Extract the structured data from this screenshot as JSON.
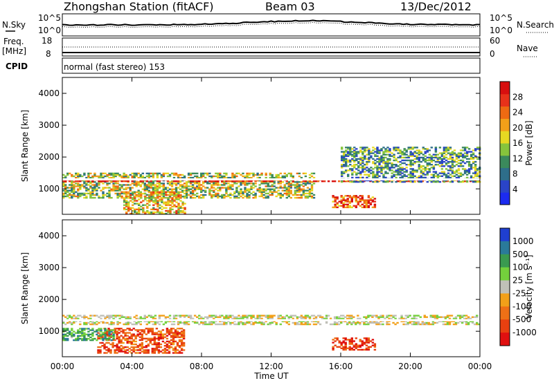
{
  "header": {
    "station": "Zhongshan Station (fitACF)",
    "beam": "Beam 03",
    "date": "13/Dec/2012"
  },
  "strips": {
    "sky_label": "N.Sky",
    "search_label": "N.Search",
    "sky_ticks": [
      "10^5",
      "10^0"
    ],
    "search_ticks": [
      "10^5",
      "10^0"
    ],
    "freq_label_1": "Freq.",
    "freq_label_2": "[MHz]",
    "freq_ticks": [
      "18",
      "8"
    ],
    "nave_label": "Nave",
    "nave_ticks": [
      "60",
      "0"
    ],
    "cpid_label": "CPID",
    "cpid_value": "normal (fast stereo) 153"
  },
  "chart_data": [
    {
      "type": "heatmap",
      "name": "power",
      "ylabel": "Slant Range [km]",
      "xlabel": "Time UT",
      "x_ticks": [
        "00:00",
        "04:00",
        "08:00",
        "12:00",
        "16:00",
        "20:00",
        "00:00"
      ],
      "y_ticks": [
        1000,
        2000,
        3000,
        4000
      ],
      "ylim": [
        200,
        4500
      ],
      "colorbar": {
        "label": "Power [dB]",
        "ticks": [
          "4",
          "8",
          "12",
          "16",
          "20",
          "24",
          "28"
        ],
        "colors": [
          "#1c2bf0",
          "#2a44c8",
          "#2e6e8a",
          "#3b8a5c",
          "#86c43c",
          "#e6d822",
          "#f2a019",
          "#ee6a12",
          "#e8321a",
          "#d80f0f"
        ]
      },
      "bands": [
        {
          "t0": 0.0,
          "t1": 14.5,
          "r0": 700,
          "r1": 1500,
          "level": 0.5
        },
        {
          "t0": 0.0,
          "t1": 24.0,
          "r0": 1220,
          "r1": 1310,
          "level": 0.95
        },
        {
          "t0": 15.5,
          "t1": 18.0,
          "r0": 400,
          "r1": 800,
          "level": 0.8
        },
        {
          "t0": 16.0,
          "t1": 24.0,
          "r0": 1200,
          "r1": 2300,
          "level": 0.35
        },
        {
          "t0": 3.5,
          "t1": 7.0,
          "r0": 200,
          "r1": 900,
          "level": 0.6
        }
      ]
    },
    {
      "type": "heatmap",
      "name": "velocity",
      "ylabel": "Slant Range [km]",
      "xlabel": "Time UT",
      "x_ticks": [
        "00:00",
        "04:00",
        "08:00",
        "12:00",
        "16:00",
        "20:00",
        "00:00"
      ],
      "y_ticks": [
        1000,
        2000,
        3000,
        4000
      ],
      "ylim": [
        200,
        4500
      ],
      "colorbar": {
        "label": "Velocity [m s⁻¹]",
        "ticks": [
          "1000",
          "500",
          "100",
          "25",
          "-25",
          "-100",
          "-500",
          "-1000"
        ],
        "colors": [
          "#1f3fd0",
          "#2a7a9a",
          "#3a9a50",
          "#74d03c",
          "#c0c0b8",
          "#f2a019",
          "#ee7016",
          "#e84010",
          "#e01010"
        ]
      },
      "bands": [
        {
          "t0": 0.0,
          "t1": 24.0,
          "r0": 1200,
          "r1": 1500,
          "level": 0.0
        },
        {
          "t0": 2.0,
          "t1": 7.0,
          "r0": 300,
          "r1": 1100,
          "level": -0.6
        },
        {
          "t0": 15.5,
          "t1": 18.0,
          "r0": 400,
          "r1": 800,
          "level": -0.7
        },
        {
          "t0": 0.0,
          "t1": 3.0,
          "r0": 700,
          "r1": 1100,
          "level": 0.4
        }
      ]
    }
  ]
}
